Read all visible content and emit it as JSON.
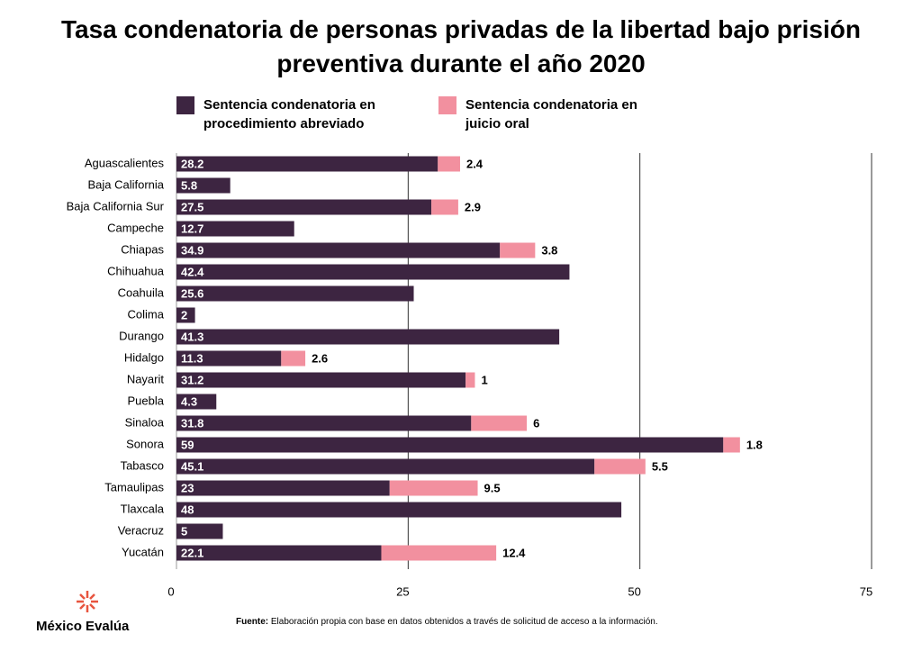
{
  "chart_data": {
    "type": "stacked-bar-horizontal",
    "title": "Tasa condenatoria de personas privadas de la libertad bajo prisión preventiva durante el año 2020",
    "categories": [
      "Aguascalientes",
      "Baja California",
      "Baja California Sur",
      "Campeche",
      "Chiapas",
      "Chihuahua",
      "Coahuila",
      "Colima",
      "Durango",
      "Hidalgo",
      "Nayarit",
      "Puebla",
      "Sinaloa",
      "Sonora",
      "Tabasco",
      "Tamaulipas",
      "Tlaxcala",
      "Veracruz",
      "Yucatán"
    ],
    "series": [
      {
        "name": "Sentencia condenatoria en procedimiento abreviado",
        "color": "#3d2541",
        "values": [
          28.2,
          5.8,
          27.5,
          12.7,
          34.9,
          42.4,
          25.6,
          2,
          41.3,
          11.3,
          31.2,
          4.3,
          31.8,
          59,
          45.1,
          23,
          48,
          5,
          22.1
        ]
      },
      {
        "name": "Sentencia condenatoria en juicio oral",
        "color": "#f2909f",
        "values": [
          2.4,
          null,
          2.9,
          null,
          3.8,
          null,
          null,
          null,
          null,
          2.6,
          1,
          null,
          6,
          1.8,
          5.5,
          9.5,
          null,
          null,
          12.4
        ]
      }
    ],
    "xlim": [
      0,
      75
    ],
    "xticks": [
      0,
      25,
      50,
      75
    ],
    "grid": true,
    "legend": "top"
  },
  "footer": {
    "brand": "México Evalúa",
    "source_label": "Fuente:",
    "source": "Elaboración propia con base en datos obtenidos a través de solicitud de acceso a la información."
  }
}
